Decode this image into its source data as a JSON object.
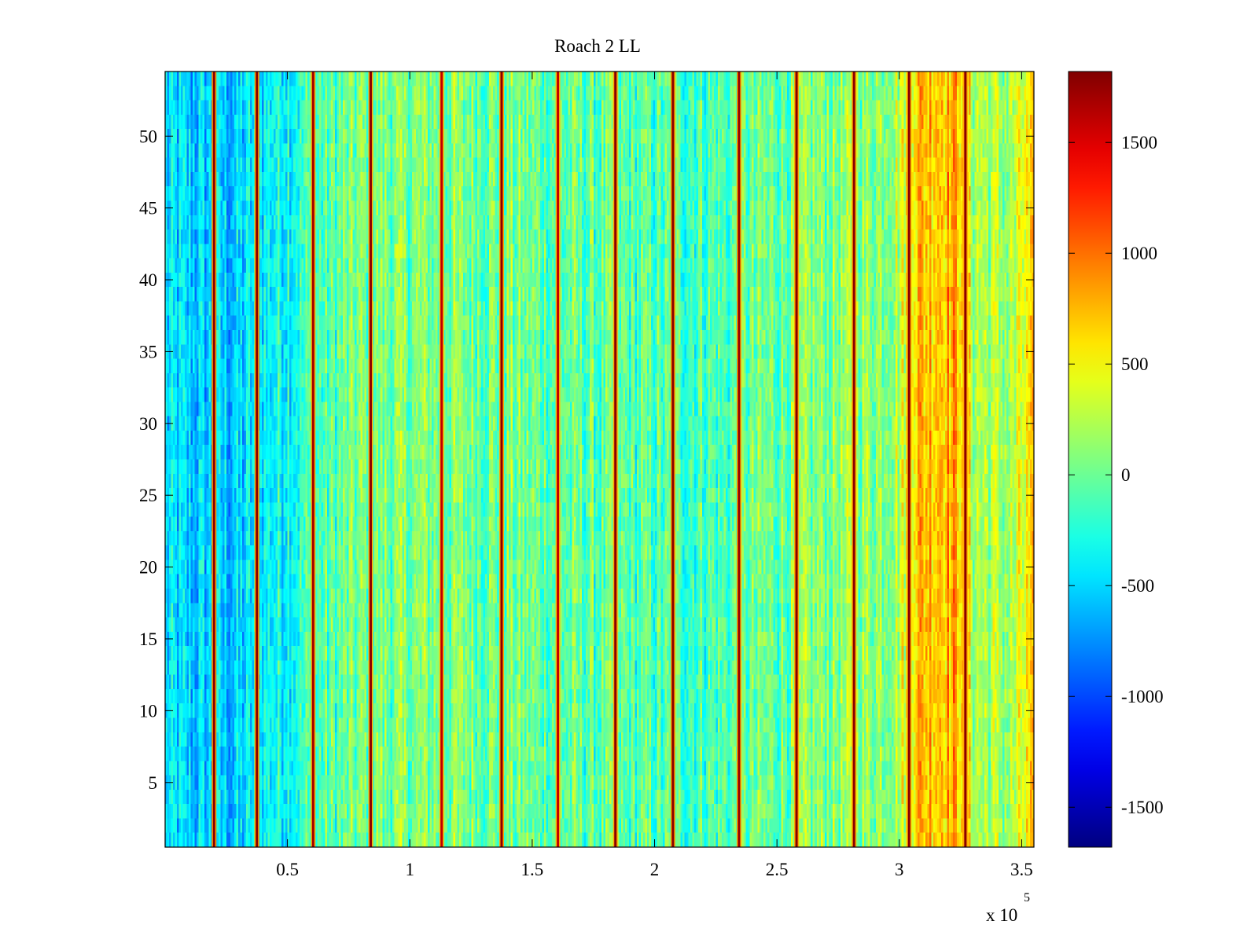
{
  "chart_data": {
    "type": "heatmap",
    "title": "Roach 2 LL",
    "xlabel": "",
    "ylabel": "",
    "x_exponent_label": "x 10",
    "x_exponent_power": "5",
    "xlim": [
      0,
      355000
    ],
    "ylim": [
      0.5,
      54.5
    ],
    "x_ticks": [
      {
        "value": 50000,
        "label": "0.5"
      },
      {
        "value": 100000,
        "label": "1"
      },
      {
        "value": 150000,
        "label": "1.5"
      },
      {
        "value": 200000,
        "label": "2"
      },
      {
        "value": 250000,
        "label": "2.5"
      },
      {
        "value": 300000,
        "label": "3"
      },
      {
        "value": 350000,
        "label": "3.5"
      }
    ],
    "y_ticks": [
      {
        "value": 5,
        "label": "5"
      },
      {
        "value": 10,
        "label": "10"
      },
      {
        "value": 15,
        "label": "15"
      },
      {
        "value": 20,
        "label": "20"
      },
      {
        "value": 25,
        "label": "25"
      },
      {
        "value": 30,
        "label": "30"
      },
      {
        "value": 35,
        "label": "35"
      },
      {
        "value": 40,
        "label": "40"
      },
      {
        "value": 45,
        "label": "45"
      },
      {
        "value": 50,
        "label": "50"
      }
    ],
    "rows": 54,
    "colorbar": {
      "colormap": "jet",
      "range": [
        -1680,
        1820
      ],
      "ticks": [
        {
          "value": 1500,
          "label": "1500"
        },
        {
          "value": 1000,
          "label": "1000"
        },
        {
          "value": 500,
          "label": "500"
        },
        {
          "value": 0,
          "label": "0"
        },
        {
          "value": -500,
          "label": "-500"
        },
        {
          "value": -1000,
          "label": "-1000"
        },
        {
          "value": -1500,
          "label": "-1500"
        }
      ]
    },
    "column_profile": [
      {
        "x": 0,
        "value": -520
      },
      {
        "x": 20000,
        "value": -560
      },
      {
        "x": 30000,
        "value": -560
      },
      {
        "x": 40000,
        "value": -380
      },
      {
        "x": 60000,
        "value": -160
      },
      {
        "x": 80000,
        "value": 20
      },
      {
        "x": 110000,
        "value": 60
      },
      {
        "x": 140000,
        "value": 20
      },
      {
        "x": 170000,
        "value": -60
      },
      {
        "x": 200000,
        "value": -120
      },
      {
        "x": 230000,
        "value": -90
      },
      {
        "x": 260000,
        "value": 40
      },
      {
        "x": 290000,
        "value": 140
      },
      {
        "x": 300000,
        "value": 260
      },
      {
        "x": 306000,
        "value": 720
      },
      {
        "x": 320000,
        "value": 820
      },
      {
        "x": 327000,
        "value": 740
      },
      {
        "x": 330000,
        "value": 260
      },
      {
        "x": 345000,
        "value": 160
      },
      {
        "x": 355000,
        "value": 560
      }
    ],
    "spike_lines": [
      {
        "x": 20000,
        "value": 1780
      },
      {
        "x": 37500,
        "value": 1780
      },
      {
        "x": 60500,
        "value": 1700
      },
      {
        "x": 84000,
        "value": 1780
      },
      {
        "x": 113000,
        "value": 1600
      },
      {
        "x": 137500,
        "value": 1780
      },
      {
        "x": 160500,
        "value": 1600
      },
      {
        "x": 184000,
        "value": 1780
      },
      {
        "x": 207500,
        "value": 1780
      },
      {
        "x": 234500,
        "value": 1750
      },
      {
        "x": 258000,
        "value": 1780
      },
      {
        "x": 281500,
        "value": 1780
      },
      {
        "x": 304000,
        "value": 1780
      },
      {
        "x": 327000,
        "value": 1780
      }
    ],
    "noise_amplitude": 380
  }
}
